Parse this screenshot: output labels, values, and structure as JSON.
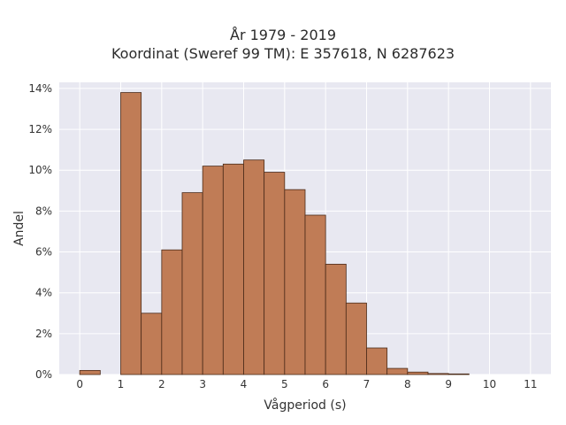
{
  "chart_data": {
    "type": "bar",
    "title": "År 1979 - 2019",
    "subtitle": "Koordinat (Sweref 99 TM): E 357618, N 6287623",
    "xlabel": "Vågperiod (s)",
    "ylabel": "Andel",
    "bin_width": 0.5,
    "x": [
      0,
      1,
      1.5,
      2,
      2.5,
      3,
      3.5,
      4,
      4.5,
      5,
      5.5,
      6,
      6.5,
      7,
      7.5,
      8,
      8.5,
      9
    ],
    "values": [
      0.2,
      13.8,
      3.0,
      6.1,
      8.9,
      10.2,
      10.3,
      10.5,
      9.9,
      9.05,
      7.8,
      5.4,
      3.5,
      1.3,
      0.3,
      0.12,
      0.05,
      0.03
    ],
    "xticks": [
      "0",
      "1",
      "2",
      "3",
      "4",
      "5",
      "6",
      "7",
      "8",
      "9",
      "10",
      "11"
    ],
    "yticks": [
      "0%",
      "2%",
      "4%",
      "6%",
      "8%",
      "10%",
      "12%",
      "14%"
    ],
    "xlim": [
      -0.5,
      11.5
    ],
    "ylim": [
      0,
      14.3
    ],
    "grid": true,
    "colors": {
      "bar_fill": "#c07c56",
      "bar_stroke": "#4a2a18",
      "plot_background": "#e8e8f1",
      "grid": "#ffffff"
    }
  }
}
